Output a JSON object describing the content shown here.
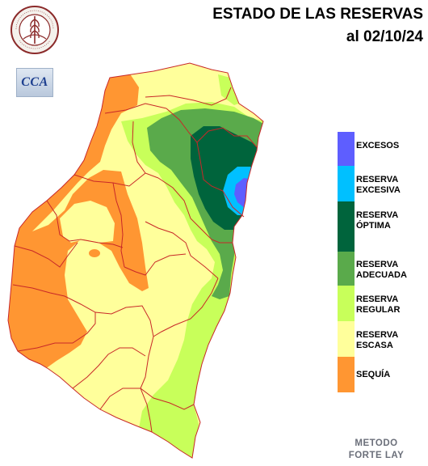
{
  "title": {
    "line1": "ESTADO DE LAS RESERVAS",
    "line2": "al 02/10/24"
  },
  "logos": {
    "bolsa": "BOLSA DE CEREALES DE ENTRE RIOS",
    "cca": "CCA"
  },
  "legend": [
    {
      "label": "EXCESOS",
      "color": "#5e5eff"
    },
    {
      "label": "RESERVA\nEXCESIVA",
      "color": "#00c0ff"
    },
    {
      "label": "RESERVA\nÓPTIMA",
      "color": "#00643c"
    },
    {
      "label": "RESERVA\nADECUADA",
      "color": "#5aaa4b"
    },
    {
      "label": "RESERVA\nREGULAR",
      "color": "#c8ff5a"
    },
    {
      "label": "RESERVA\nESCASA",
      "color": "#ffff9b"
    },
    {
      "label": "SEQUÍA",
      "color": "#ff9632"
    }
  ],
  "method": "METODO\nFORTE LAY",
  "colors": {
    "border": "#c82828"
  }
}
